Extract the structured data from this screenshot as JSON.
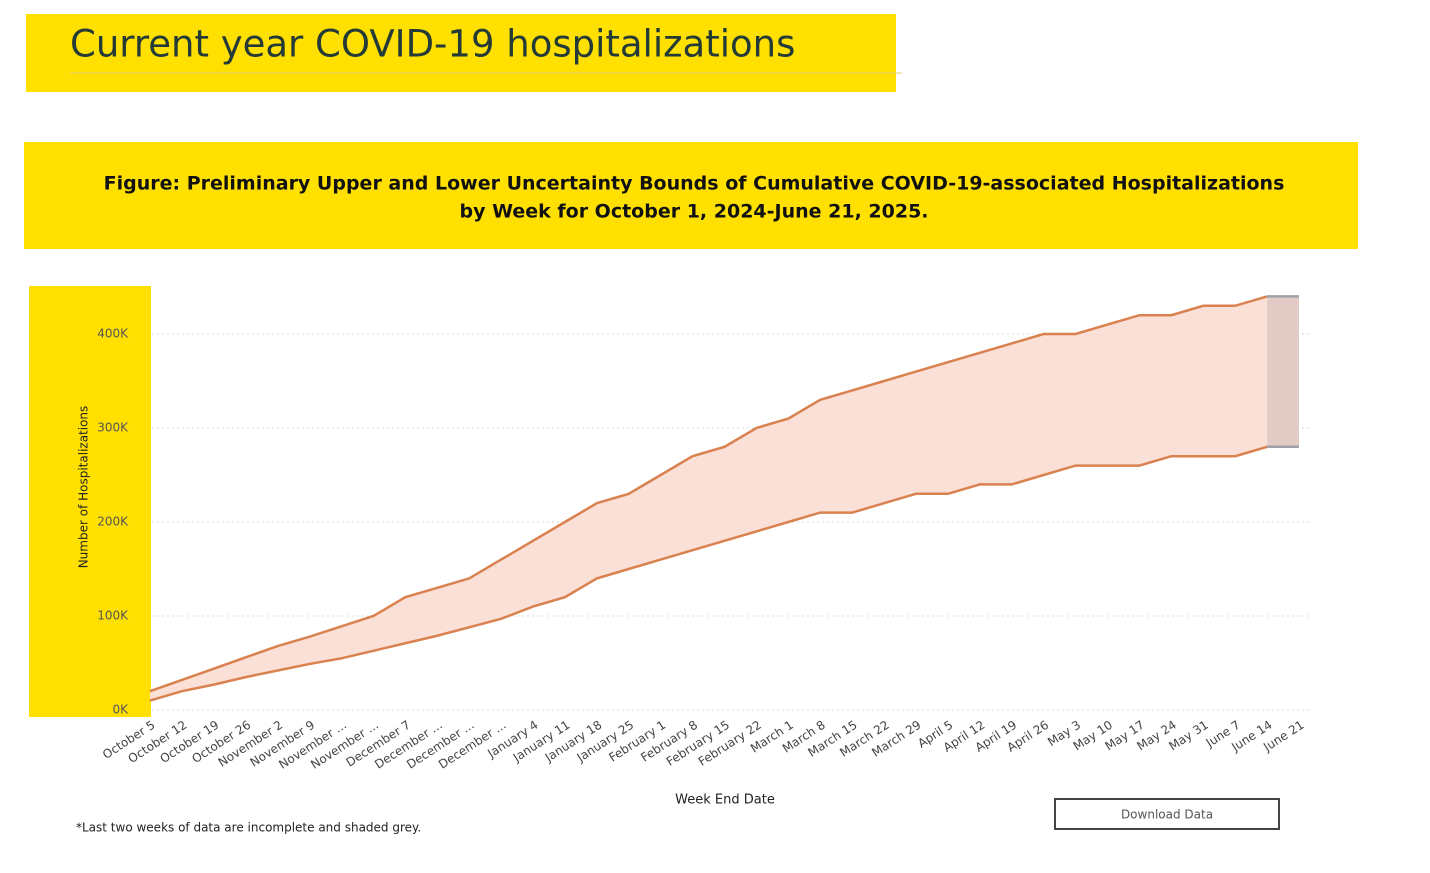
{
  "header": {
    "title": "Current year COVID-19 hospitalizations"
  },
  "chart_data": {
    "type": "area_band",
    "title": "Figure: Preliminary Upper and Lower Uncertainty Bounds of Cumulative COVID-19-associated Hospitalizations",
    "subtitle": "by Week for October 1, 2024-June 21, 2025.",
    "y_label": "Number of Hospitalizations",
    "x_label": "Week End Date",
    "categories": [
      "October 5",
      "October 12",
      "October 19",
      "October 26",
      "November 2",
      "November 9",
      "November ...",
      "November ...",
      "December 7",
      "December ...",
      "December ...",
      "December ...",
      "January 4",
      "January 11",
      "January 18",
      "January 25",
      "February 1",
      "February 8",
      "February 15",
      "February 22",
      "March 1",
      "March 8",
      "March 15",
      "March 22",
      "March 29",
      "April 5",
      "April 12",
      "April 19",
      "April 26",
      "May 3",
      "May 10",
      "May 17",
      "May 24",
      "May 31",
      "June 7",
      "June 14",
      "June 21"
    ],
    "series": [
      {
        "color": "#d9814f",
        "values": [
          20000,
          32000,
          44000,
          56000,
          68000,
          78000,
          89000,
          100000,
          120000,
          130000,
          140000,
          160000,
          180000,
          200000,
          220000,
          230000,
          250000,
          270000,
          280000,
          300000,
          310000,
          330000,
          340000,
          350000,
          360000,
          370000,
          380000,
          390000,
          400000,
          400000,
          410000,
          420000,
          420000,
          430000,
          430000,
          440000,
          440000
        ]
      },
      {
        "color": "#d9814f",
        "values": [
          10000,
          20000,
          27000,
          35000,
          42000,
          49000,
          55000,
          63000,
          71000,
          79000,
          88000,
          97000,
          110000,
          120000,
          140000,
          150000,
          160000,
          170000,
          180000,
          190000,
          200000,
          210000,
          210000,
          220000,
          230000,
          230000,
          240000,
          240000,
          250000,
          260000,
          260000,
          260000,
          270000,
          270000,
          270000,
          280000,
          280000
        ]
      }
    ],
    "fill_color": "#fae0d6",
    "incomplete_color": "#a0a0a8",
    "incomplete_fill": "#e2cbc5",
    "ylim": [
      0,
      450000
    ],
    "yticks": [
      {
        "value": 0,
        "label": "0K"
      },
      {
        "value": 100000,
        "label": "100K"
      },
      {
        "value": 200000,
        "label": "200K"
      },
      {
        "value": 300000,
        "label": "300K"
      },
      {
        "value": 400000,
        "label": "400K"
      }
    ],
    "grid": true,
    "note": "*Last two weeks of data are incomplete and shaded grey.",
    "button": "Download Data"
  }
}
